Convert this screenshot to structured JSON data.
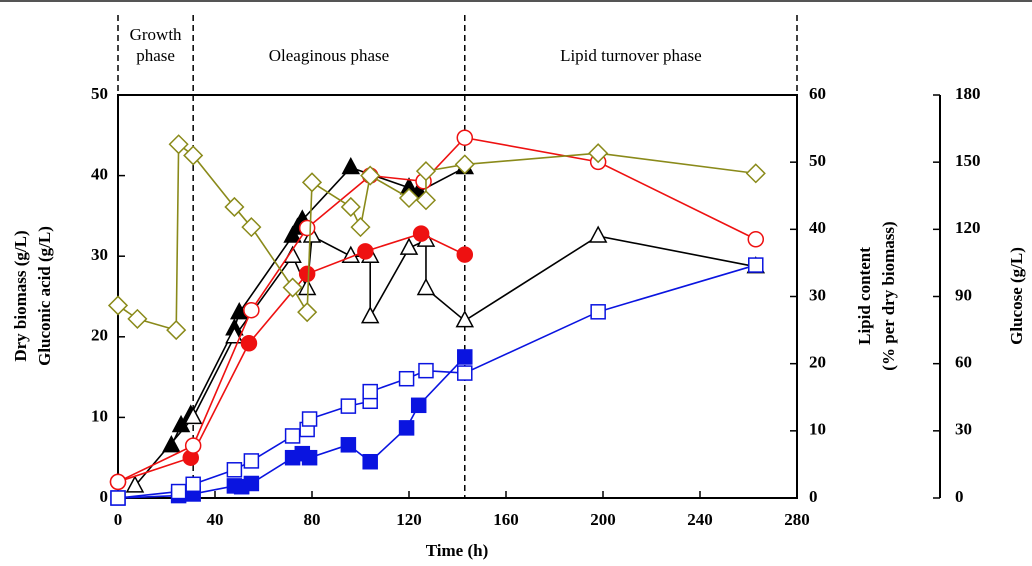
{
  "chart_data": {
    "type": "line",
    "xlabel": "Time (h)",
    "ylabel": [
      "Dry biomass (g/L)",
      "Gluconic acid (g/L)"
    ],
    "y2label": [
      "Lipid content",
      "(% per dry biomass)"
    ],
    "y3label": "Glucose (g/L)",
    "phases": [
      [
        "Growth",
        "phase"
      ],
      [
        "Oleaginous  phase"
      ],
      [
        "Lipid turnover phase"
      ]
    ],
    "phase_boundaries": [
      0,
      31,
      143,
      280
    ],
    "xlim": [
      0,
      280
    ],
    "xticks": [
      0,
      40,
      80,
      120,
      160,
      200,
      240,
      280
    ],
    "ylim": [
      0,
      50
    ],
    "yticks": [
      0,
      10,
      20,
      30,
      40,
      50
    ],
    "y2lim": [
      0,
      60
    ],
    "y2ticks": [
      0,
      10,
      20,
      30,
      40,
      50,
      60
    ],
    "y3lim": [
      0,
      180
    ],
    "y3ticks": [
      0,
      30,
      60,
      90,
      120,
      150,
      180
    ],
    "series": [
      {
        "color": "#000000",
        "marker": "triangle",
        "filled": true,
        "x": [
          22,
          26,
          30,
          48,
          50,
          72,
          74,
          76,
          96,
          120,
          124,
          143
        ],
        "values": [
          6.5,
          9,
          10.3,
          21,
          23,
          32.5,
          33.5,
          34.5,
          41,
          38.5,
          38,
          41
        ]
      },
      {
        "color": "#000000",
        "marker": "triangle",
        "filled": false,
        "x": [
          7,
          31,
          48,
          72,
          78,
          80,
          96,
          104,
          104,
          120,
          127,
          127,
          143,
          198,
          263
        ],
        "values": [
          1.5,
          10,
          20,
          30,
          26,
          32.5,
          30,
          30,
          22.5,
          31,
          32,
          26,
          22,
          32.5,
          28.7
        ]
      },
      {
        "color": "#ee1111",
        "marker": "circle",
        "filled": true,
        "x": [
          0,
          30,
          54,
          78,
          102,
          125,
          143
        ],
        "values": [
          2,
          5,
          19.2,
          27.8,
          30.6,
          32.8,
          30.2
        ]
      },
      {
        "color": "#ee1111",
        "marker": "circle",
        "filled": false,
        "x": [
          0,
          31,
          55,
          78,
          104,
          126,
          143,
          198,
          263
        ],
        "values": [
          2,
          6.5,
          23.3,
          33.5,
          40,
          39.3,
          44.7,
          41.7,
          32.1
        ]
      },
      {
        "color": "#0a14e0",
        "marker": "square",
        "filled": true,
        "x": [
          0,
          25,
          31,
          48,
          51,
          55,
          72,
          76,
          79,
          95,
          104,
          119,
          124,
          143
        ],
        "values": [
          0,
          0.3,
          0.5,
          1.5,
          1.4,
          1.8,
          5,
          5.5,
          5,
          6.6,
          4.5,
          8.7,
          11.5,
          17.5
        ]
      },
      {
        "color": "#0a14e0",
        "marker": "square",
        "filled": false,
        "x": [
          0,
          25,
          31,
          48,
          55,
          72,
          78,
          79,
          95,
          104,
          104,
          119,
          127,
          143,
          198,
          263
        ],
        "values": [
          0,
          0.8,
          1.7,
          3.5,
          4.6,
          7.7,
          8.5,
          9.8,
          11.4,
          12,
          13.2,
          14.8,
          15.8,
          15.5,
          23.1,
          28.9
        ]
      },
      {
        "color": "#8a8a1a",
        "marker": "diamond",
        "filled": false,
        "axis": "y3",
        "x": [
          0,
          8,
          24,
          25,
          31,
          48,
          55,
          72,
          78,
          80,
          96,
          100,
          104,
          120,
          127,
          127,
          143,
          198,
          263
        ],
        "values": [
          86,
          80,
          75,
          158,
          153,
          130,
          121,
          94,
          83,
          141,
          130,
          121,
          144,
          134,
          133,
          146,
          149,
          154,
          145
        ]
      }
    ]
  }
}
